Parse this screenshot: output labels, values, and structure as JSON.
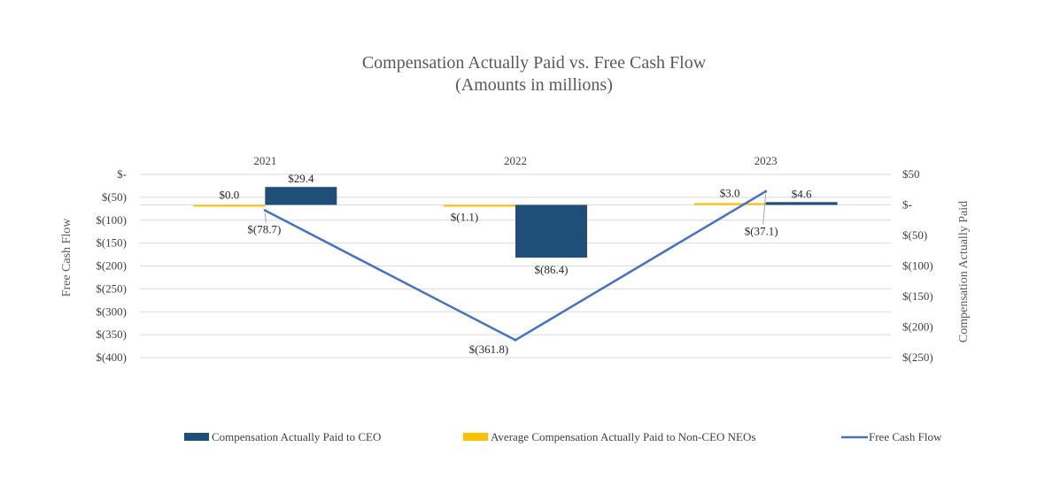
{
  "chart_data": {
    "type": "bar",
    "title": "Compensation Actually Paid vs. Free Cash Flow",
    "subtitle": "(Amounts in millions)",
    "categories": [
      "2021",
      "2022",
      "2023"
    ],
    "left_axis": {
      "label": "Free Cash Flow",
      "range": [
        -400,
        0
      ],
      "ticks": [
        0,
        -50,
        -100,
        -150,
        -200,
        -250,
        -300,
        -350,
        -400
      ],
      "tick_labels": [
        "$-",
        "$(50)",
        "$(100)",
        "$(150)",
        "$(200)",
        "$(250)",
        "$(300)",
        "$(350)",
        "$(400)"
      ]
    },
    "right_axis": {
      "label": "Compensation Actually Paid",
      "range": [
        -250,
        50
      ],
      "ticks": [
        50,
        0,
        -50,
        -100,
        -150,
        -200,
        -250
      ],
      "tick_labels": [
        "$50",
        "$-",
        "$(50)",
        "$(100)",
        "$(150)",
        "$(200)",
        "$(250)"
      ]
    },
    "series": [
      {
        "name": "Compensation Actually Paid to CEO",
        "type": "bar",
        "axis": "right",
        "color": "#1f4e79",
        "values": [
          29.4,
          -86.4,
          4.6
        ],
        "labels": [
          "$29.4",
          "$(86.4)",
          "$4.6"
        ]
      },
      {
        "name": "Average Compensation Actually Paid to Non-CEO NEOs",
        "type": "bar",
        "axis": "right",
        "color": "#ffc000",
        "values": [
          0.0,
          -1.1,
          3.0
        ],
        "labels": [
          "$0.0",
          "$(1.1)",
          "$3.0"
        ]
      },
      {
        "name": "Free Cash Flow",
        "type": "line",
        "axis": "left",
        "color": "#4472c4",
        "values": [
          -78.7,
          -361.8,
          -37.1
        ],
        "labels": [
          "$(78.7)",
          "$(361.8)",
          "$(37.1)"
        ]
      }
    ],
    "legend_position": "bottom"
  }
}
